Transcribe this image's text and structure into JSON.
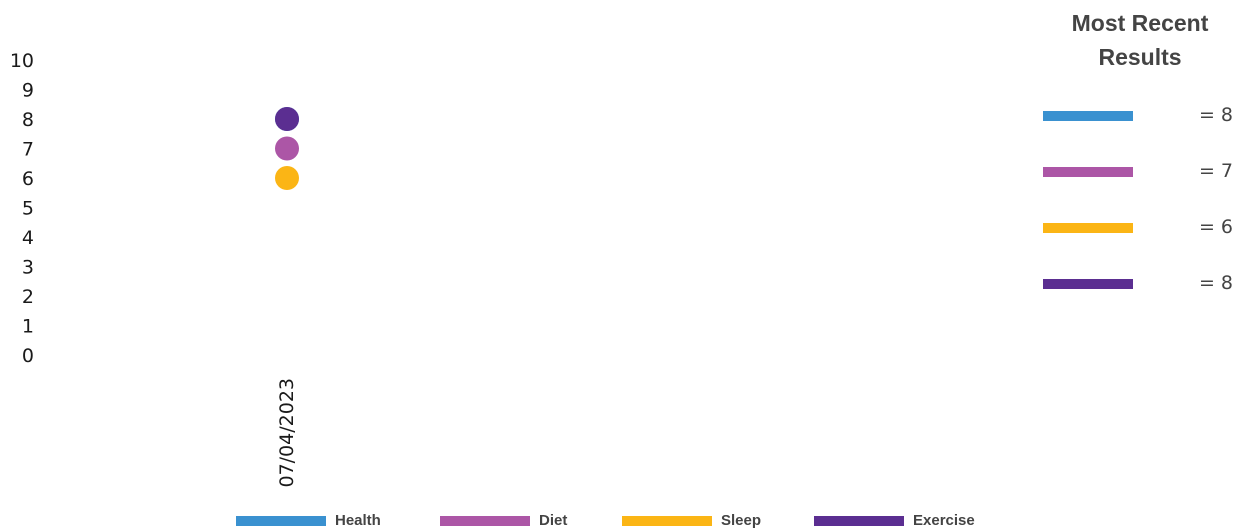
{
  "chart_data": {
    "type": "scatter",
    "x": [
      "07/04/2023"
    ],
    "ylim": [
      0,
      10
    ],
    "yticks": [
      0,
      1,
      2,
      3,
      4,
      5,
      6,
      7,
      8,
      9,
      10
    ],
    "series": [
      {
        "name": "Health",
        "color": "#3a91d0",
        "values": [
          8
        ]
      },
      {
        "name": "Diet",
        "color": "#ac56a6",
        "values": [
          7
        ]
      },
      {
        "name": "Sleep",
        "color": "#fbb515",
        "values": [
          6
        ]
      },
      {
        "name": "Exercise",
        "color": "#5b2e91",
        "values": [
          8
        ]
      }
    ],
    "legend_position": "bottom"
  },
  "recent_results": {
    "title": "Most Recent Results",
    "items": [
      {
        "label": "= 8",
        "color": "#3a91d0"
      },
      {
        "label": "= 7",
        "color": "#ac56a6"
      },
      {
        "label": "= 6",
        "color": "#fbb515"
      },
      {
        "label": "= 8",
        "color": "#5b2e91"
      }
    ]
  }
}
